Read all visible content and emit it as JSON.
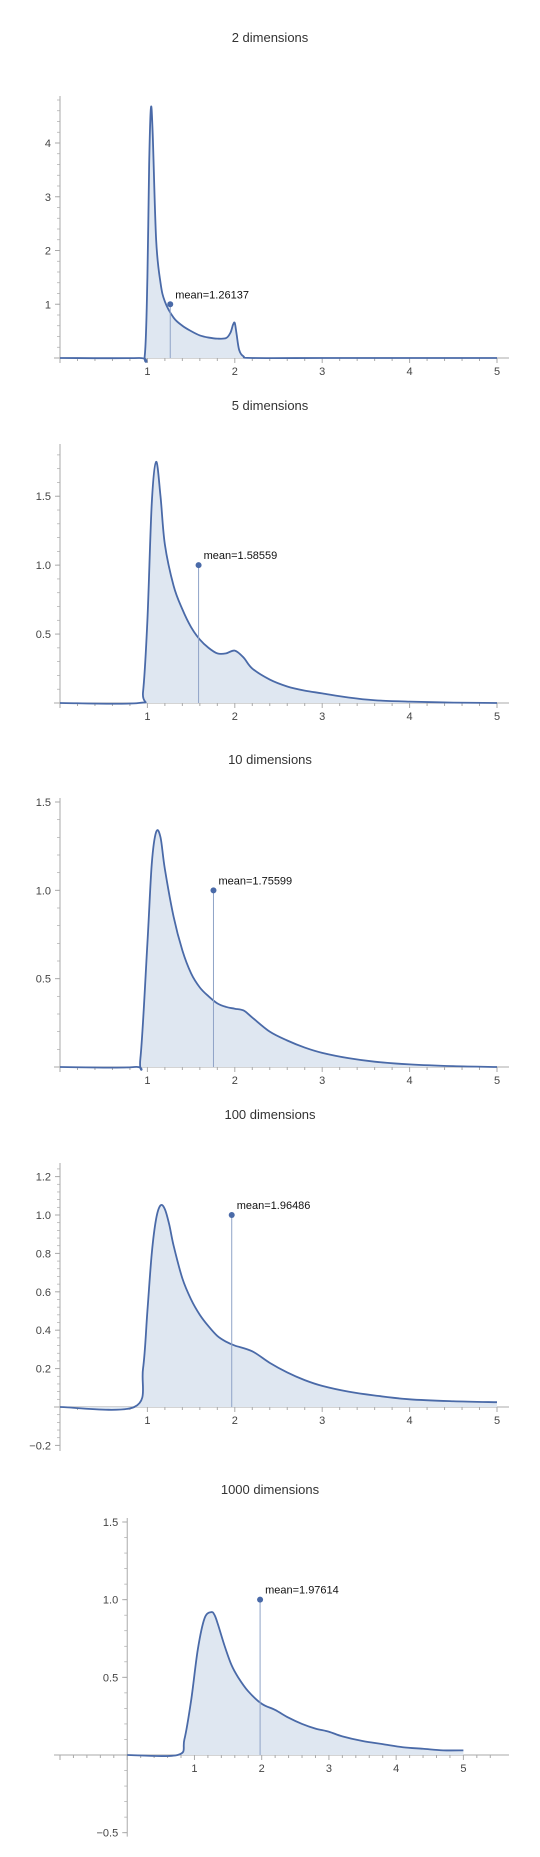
{
  "colors": {
    "curve": "#4a6aa8",
    "fill": "#dfe7f1",
    "mean_line": "#8fa3c7",
    "axis": "#aaaaaa"
  },
  "chart_data": [
    {
      "type": "area",
      "title": "2 dimensions",
      "xlim": [
        0,
        5
      ],
      "ylim": [
        0,
        4.8
      ],
      "xticks": [
        1,
        2,
        3,
        4,
        5
      ],
      "yticks": [
        1,
        2,
        3,
        4
      ],
      "ytick_labels": [
        "1",
        "2",
        "3",
        "4"
      ],
      "x": [
        0,
        0.9,
        0.97,
        1.0,
        1.02,
        1.04,
        1.06,
        1.1,
        1.15,
        1.2,
        1.3,
        1.4,
        1.5,
        1.6,
        1.7,
        1.8,
        1.9,
        1.95,
        1.98,
        2.0,
        2.02,
        2.05,
        2.1,
        2.2,
        3,
        4,
        5
      ],
      "y": [
        0,
        0,
        0.05,
        1.5,
        3.6,
        4.65,
        4.2,
        2.2,
        1.4,
        1.05,
        0.75,
        0.6,
        0.5,
        0.42,
        0.38,
        0.36,
        0.37,
        0.47,
        0.62,
        0.65,
        0.45,
        0.15,
        0.03,
        0,
        0,
        0,
        0
      ],
      "mean": 1.26137,
      "mean_marker_y": 1.0,
      "mean_label": "mean=1.26137"
    },
    {
      "type": "area",
      "title": "5 dimensions",
      "xlim": [
        0,
        5
      ],
      "ylim": [
        0,
        1.85
      ],
      "xticks": [
        1,
        2,
        3,
        4,
        5
      ],
      "yticks": [
        0.5,
        1.0,
        1.5
      ],
      "ytick_labels": [
        "0.5",
        "1.0",
        "1.5"
      ],
      "x": [
        0,
        0.9,
        0.95,
        1.0,
        1.05,
        1.1,
        1.15,
        1.2,
        1.3,
        1.4,
        1.5,
        1.6,
        1.7,
        1.8,
        1.9,
        2.0,
        2.1,
        2.2,
        2.4,
        2.6,
        2.8,
        3.0,
        3.3,
        3.6,
        4,
        4.5,
        5
      ],
      "y": [
        0,
        0,
        0.08,
        0.6,
        1.45,
        1.75,
        1.5,
        1.15,
        0.85,
        0.68,
        0.55,
        0.46,
        0.4,
        0.36,
        0.36,
        0.38,
        0.33,
        0.25,
        0.17,
        0.12,
        0.09,
        0.07,
        0.04,
        0.02,
        0.01,
        0.003,
        0
      ],
      "mean": 1.58559,
      "mean_marker_y": 1.0,
      "mean_label": "mean=1.58559"
    },
    {
      "type": "area",
      "title": "10 dimensions",
      "xlim": [
        0,
        5
      ],
      "ylim": [
        0,
        1.5
      ],
      "xticks": [
        1,
        2,
        3,
        4,
        5
      ],
      "yticks": [
        0.5,
        1.0,
        1.5
      ],
      "ytick_labels": [
        "0.5",
        "1.0",
        "1.5"
      ],
      "x": [
        0,
        0.85,
        0.92,
        1.0,
        1.05,
        1.1,
        1.15,
        1.2,
        1.3,
        1.4,
        1.5,
        1.6,
        1.7,
        1.8,
        1.9,
        2.0,
        2.1,
        2.2,
        2.4,
        2.6,
        2.8,
        3.0,
        3.3,
        3.6,
        4,
        4.5,
        5
      ],
      "y": [
        0,
        0,
        0.05,
        0.7,
        1.15,
        1.33,
        1.3,
        1.12,
        0.85,
        0.66,
        0.53,
        0.45,
        0.4,
        0.36,
        0.34,
        0.33,
        0.32,
        0.28,
        0.2,
        0.15,
        0.11,
        0.08,
        0.05,
        0.03,
        0.015,
        0.005,
        0
      ],
      "mean": 1.75599,
      "mean_marker_y": 1.0,
      "mean_label": "mean=1.75599"
    },
    {
      "type": "area",
      "title": "100 dimensions",
      "xlim": [
        0,
        5
      ],
      "ylim": [
        -0.2,
        1.25
      ],
      "xticks": [
        1,
        2,
        3,
        4,
        5
      ],
      "yticks": [
        -0.2,
        0.2,
        0.4,
        0.6,
        0.8,
        1.0,
        1.2
      ],
      "ytick_labels": [
        "−0.2",
        "0.2",
        "0.4",
        "0.6",
        "0.8",
        "1.0",
        "1.2"
      ],
      "x": [
        0,
        0.85,
        0.95,
        1.0,
        1.05,
        1.1,
        1.15,
        1.2,
        1.25,
        1.3,
        1.4,
        1.5,
        1.6,
        1.7,
        1.8,
        1.9,
        2.0,
        2.2,
        2.4,
        2.6,
        2.8,
        3.0,
        3.3,
        3.6,
        4,
        4.5,
        5
      ],
      "y": [
        0,
        0,
        0.2,
        0.5,
        0.8,
        0.98,
        1.05,
        1.03,
        0.95,
        0.84,
        0.67,
        0.56,
        0.48,
        0.42,
        0.37,
        0.34,
        0.32,
        0.29,
        0.23,
        0.18,
        0.14,
        0.11,
        0.08,
        0.06,
        0.04,
        0.03,
        0.025
      ],
      "mean": 1.96486,
      "mean_marker_y": 1.0,
      "mean_label": "mean=1.96486"
    },
    {
      "type": "area",
      "title": "1000 dimensions",
      "xlim": [
        -1,
        5.5
      ],
      "ylim": [
        -0.5,
        1.5
      ],
      "xticks": [
        1,
        2,
        3,
        4,
        5
      ],
      "yticks": [
        -0.5,
        0.5,
        1.0,
        1.5
      ],
      "ytick_labels": [
        "−0.5",
        "0.5",
        "1.0",
        "1.5"
      ],
      "x": [
        0,
        0.75,
        0.85,
        0.95,
        1.05,
        1.15,
        1.25,
        1.3,
        1.35,
        1.45,
        1.55,
        1.65,
        1.8,
        2.0,
        2.2,
        2.4,
        2.6,
        2.8,
        3.0,
        3.2,
        3.5,
        3.8,
        4.1,
        4.4,
        4.7,
        5.0
      ],
      "y": [
        0,
        0,
        0.1,
        0.35,
        0.68,
        0.88,
        0.92,
        0.9,
        0.84,
        0.7,
        0.58,
        0.5,
        0.41,
        0.33,
        0.29,
        0.24,
        0.2,
        0.17,
        0.15,
        0.12,
        0.09,
        0.07,
        0.05,
        0.04,
        0.03,
        0.03
      ],
      "mean": 1.97614,
      "mean_marker_y": 1.0,
      "mean_label": "mean=1.97614"
    }
  ]
}
